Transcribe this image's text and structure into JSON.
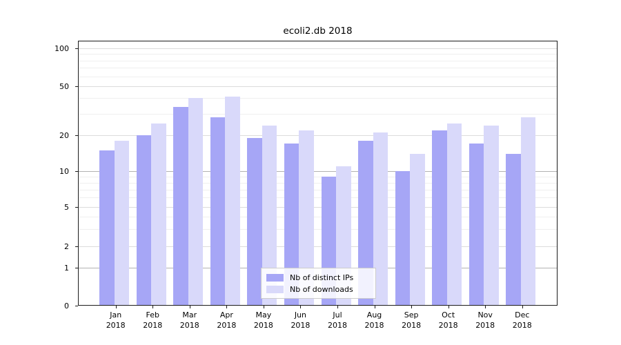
{
  "title": "ecoli2.db 2018",
  "chart_data": {
    "type": "bar",
    "title": "ecoli2.db 2018",
    "categories": [
      "Jan",
      "Feb",
      "Mar",
      "Apr",
      "May",
      "Jun",
      "Jul",
      "Aug",
      "Sep",
      "Oct",
      "Nov",
      "Dec"
    ],
    "category_year": "2018",
    "series": [
      {
        "name": "Nb of distinct IPs",
        "color": "#a6a6f6",
        "values": [
          15,
          20,
          34,
          28,
          19,
          17,
          9,
          18,
          10,
          22,
          17,
          14
        ]
      },
      {
        "name": "Nb of downloads",
        "color": "#d9d9fa",
        "values": [
          18,
          25,
          40,
          41,
          24,
          22,
          11,
          21,
          14,
          25,
          24,
          28
        ]
      }
    ],
    "yscale": "log-like (0,1,2,5,10,20,50,100 ticks)",
    "yticks": [
      0,
      1,
      2,
      5,
      10,
      20,
      50,
      100
    ],
    "ylim": [
      0,
      115
    ],
    "xlabel": "",
    "ylabel": "",
    "grid": true,
    "legend_position": "bottom-center-inside"
  },
  "colors": {
    "background": "#ffffff",
    "bar_distinct_ips": "#a6a6f6",
    "bar_downloads": "#d9d9fa",
    "grid_major_dark": "#b2b2b2",
    "grid_major_light": "#dcdcdc",
    "grid_minor": "#efefef",
    "spine": "#1a1a1a",
    "legend_border": "#cccccc"
  }
}
